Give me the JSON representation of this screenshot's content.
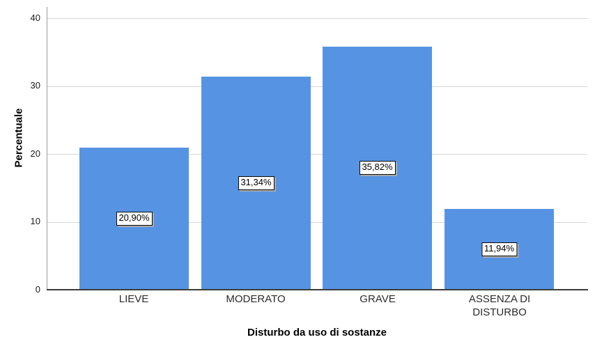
{
  "chart_data": {
    "type": "bar",
    "title": "",
    "xlabel": "Disturbo da uso di sostanze",
    "ylabel": "Percentuale",
    "categories": [
      "LIEVE",
      "MODERATO",
      "GRAVE",
      "ASSENZA DI DISTURBO"
    ],
    "values": [
      20.9,
      31.34,
      35.82,
      11.94
    ],
    "value_labels": [
      "20,90%",
      "31,34%",
      "35,82%",
      "11,94%"
    ],
    "ylim": [
      0,
      40
    ],
    "ytick_labels": [
      "0",
      "10",
      "20",
      "30",
      "40"
    ],
    "grid": "horizontal-gridlines-on",
    "legend": "none",
    "bar_color": "#5694E3",
    "gridline_color": "#d6d6d6",
    "value_label_style": "white box, black border, centered inside bar"
  }
}
